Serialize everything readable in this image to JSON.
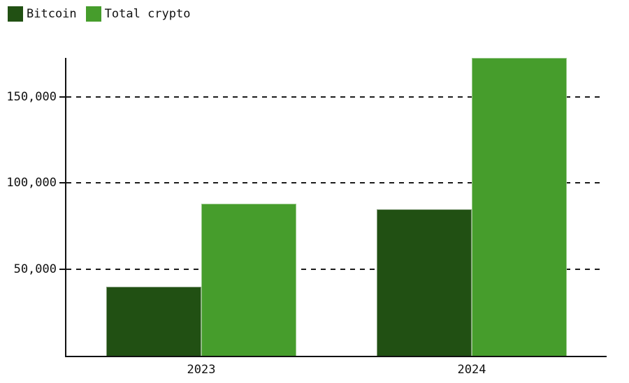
{
  "chart_data": {
    "type": "bar",
    "title": "",
    "xlabel": "",
    "ylabel": "",
    "categories": [
      "2023",
      "2024"
    ],
    "series": [
      {
        "name": "Bitcoin",
        "color": "#215013",
        "values": [
          40000,
          85000
        ]
      },
      {
        "name": "Total crypto",
        "color": "#469d2c",
        "values": [
          88000,
          172500
        ]
      }
    ],
    "ylim": [
      0,
      172500
    ],
    "yticks": [
      {
        "value": 50000,
        "label": "50,000"
      },
      {
        "value": 100000,
        "label": "100,000"
      },
      {
        "value": 150000,
        "label": "150,000"
      }
    ],
    "grid": "horizontal-dashed",
    "legend_position": "top-left",
    "axis_color": "#111111",
    "background_color": "#ffffff",
    "text_color": "#111111"
  }
}
